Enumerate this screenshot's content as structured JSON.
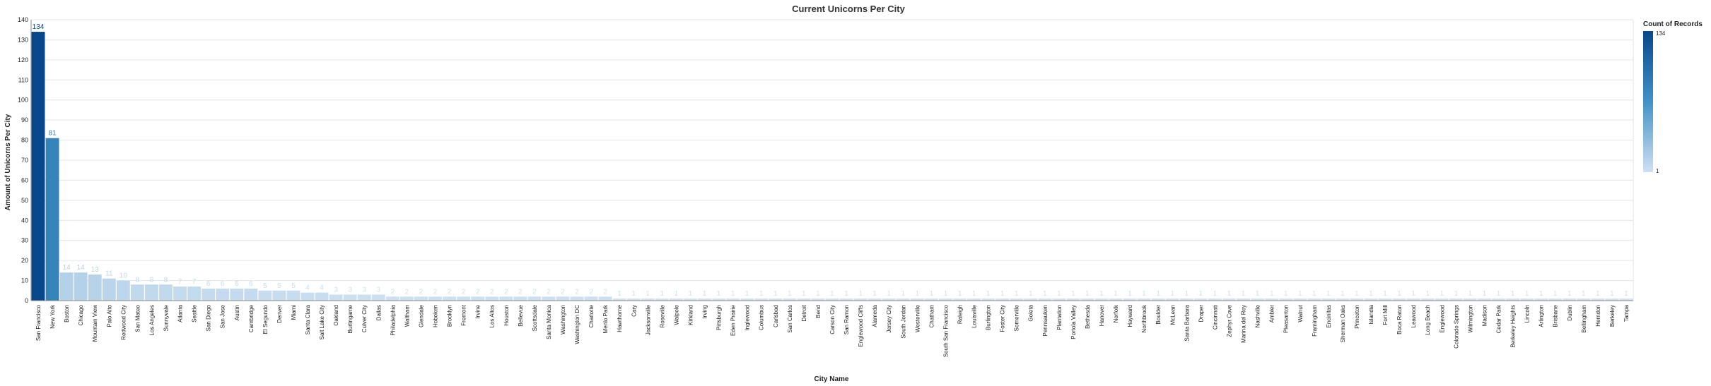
{
  "chart_data": {
    "type": "bar",
    "title": "Current Unicorns Per City",
    "xlabel": "City Name",
    "ylabel": "Amount of Unicorns Per City",
    "ylim": [
      0,
      140
    ],
    "yticks": [
      0,
      10,
      20,
      30,
      40,
      50,
      60,
      70,
      80,
      90,
      100,
      110,
      120,
      130,
      140
    ],
    "grid": true,
    "categories": [
      "San Francisco",
      "New York",
      "Boston",
      "Chicago",
      "Mountain View",
      "Palo Alto",
      "Redwood City",
      "San Mateo",
      "Los Angeles",
      "Sunnyvale",
      "Atlanta",
      "Seattle",
      "San Diego",
      "San Jose",
      "Austin",
      "Cambridge",
      "El Segundo",
      "Denver",
      "Miami",
      "Santa Clara",
      "Salt Lake City",
      "Oakland",
      "Burlingame",
      "Culver City",
      "Dallas",
      "Philadelphia",
      "Waltham",
      "Glendale",
      "Hoboken",
      "Brooklyn",
      "Fremont",
      "Irvine",
      "Los Altos",
      "Houston",
      "Bellevue",
      "Scottsdale",
      "Santa Monica",
      "Washington",
      "Washington DC",
      "Charlotte",
      "Menlo Park",
      "Hawthorne",
      "Cary",
      "Jacksonville",
      "Roseville",
      "Walpole",
      "Kirkland",
      "Irving",
      "Pittsburgh",
      "Eden Prairie",
      "Inglewood",
      "Columbus",
      "Carlsbad",
      "San Carlos",
      "Detroit",
      "Bend",
      "Carson City",
      "San Ramon",
      "Englewood Cliffs",
      "Alameda",
      "Jersey City",
      "South Jordan",
      "Westerville",
      "Chatham",
      "South San Francisco",
      "Raleigh",
      "Louisville",
      "Burlington",
      "Foster City",
      "Somerville",
      "Goleta",
      "Pennsauken",
      "Plantation",
      "Portola Valley",
      "Bethesda",
      "Hanover",
      "Norfolk",
      "Hayward",
      "Northbrook",
      "Boulder",
      "McLean",
      "Santa Barbara",
      "Draper",
      "Cincinnati",
      "Zephyr Cove",
      "Marina del Rey",
      "Nashville",
      "Ambler",
      "Pleasanton",
      "Walnut",
      "Framingham",
      "Encinitas",
      "Sherman Oaks",
      "Princeton",
      "Islandia",
      "Fort Mill",
      "Boca Raton",
      "Leawood",
      "Long Beach",
      "Englewood",
      "Colorado Springs",
      "Wilmington",
      "Madison",
      "Cedar Park",
      "Berkeley Heights",
      "Lincoln",
      "Arlington",
      "Brisbane",
      "Dublin",
      "Bellingham",
      "Herndon",
      "Berkeley",
      "Tampa"
    ],
    "values": [
      134,
      81,
      14,
      14,
      13,
      11,
      10,
      8,
      8,
      8,
      7,
      7,
      6,
      6,
      6,
      6,
      5,
      5,
      5,
      4,
      4,
      3,
      3,
      3,
      3,
      2,
      2,
      2,
      2,
      2,
      2,
      2,
      2,
      2,
      2,
      2,
      2,
      2,
      2,
      2,
      2,
      1,
      1,
      1,
      1,
      1,
      1,
      1,
      1,
      1,
      1,
      1,
      1,
      1,
      1,
      1,
      1,
      1,
      1,
      1,
      1,
      1,
      1,
      1,
      1,
      1,
      1,
      1,
      1,
      1,
      1,
      1,
      1,
      1,
      1,
      1,
      1,
      1,
      1,
      1,
      1,
      1,
      1,
      1,
      1,
      1,
      1,
      1,
      1,
      1,
      1,
      1,
      1,
      1,
      1,
      1,
      1,
      1,
      1,
      1,
      1,
      1,
      1,
      1,
      1,
      1,
      1,
      1,
      1,
      1,
      1,
      1,
      1
    ],
    "legend": {
      "title": "Count of Records",
      "min": 1,
      "max": 134,
      "color_low": "#cfe1f2",
      "color_high": "#08478c",
      "placement": "right"
    }
  }
}
